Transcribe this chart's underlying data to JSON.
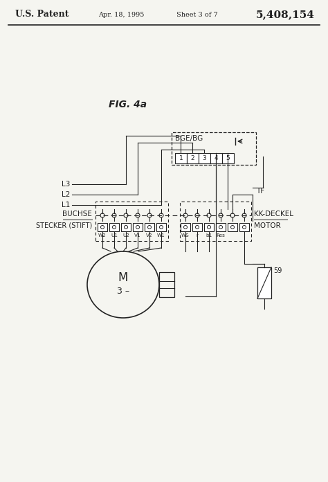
{
  "title_left": "U.S. Patent",
  "title_center": "Apr. 18, 1995",
  "title_center2": "Sheet 3 of 7",
  "title_right": "5,408,154",
  "fig_label": "FIG. 4a",
  "bg_color": "#f5f5f0",
  "line_color": "#222222",
  "connector_pins": [
    "1",
    "2",
    "3",
    "4",
    "5"
  ],
  "buchse_label": "BUCHSE",
  "stecker_label": "STECKER (STIFT)",
  "kk_deckel_label": "KK-DECKEL",
  "motor_label": "MOTOR",
  "tf_label": "TF",
  "pin_labels": [
    "W2",
    "U1",
    "U2",
    "V1",
    "V2",
    "W1",
    "WS",
    "r",
    "b1",
    "Res"
  ],
  "ref_59": "59",
  "L_labels": [
    "L3",
    "L2",
    "L1"
  ],
  "bge_label": "BGE/BG"
}
